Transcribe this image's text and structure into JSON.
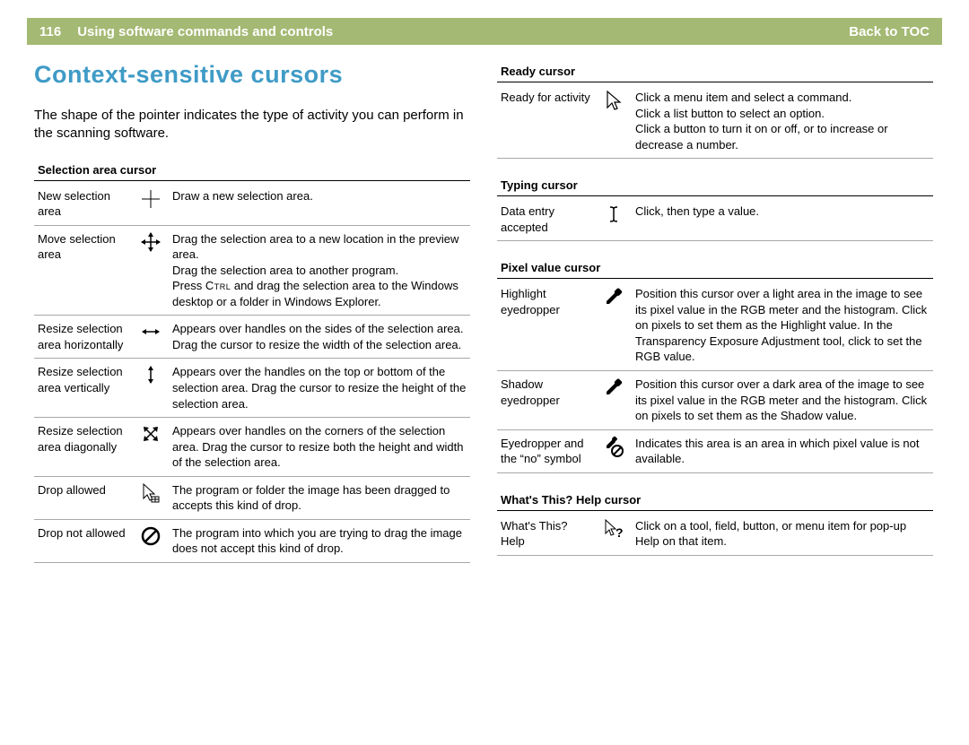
{
  "colors": {
    "header_bg": "#a4b973",
    "title": "#3f9bc6",
    "text": "#000000",
    "rule": "#a8a8a8"
  },
  "header": {
    "page_number": "116",
    "chapter_title": "Using software commands and controls",
    "back_link": "Back to TOC"
  },
  "title": "Context-sensitive cursors",
  "intro": "The shape of the pointer indicates the type of activity you can perform in the scanning software.",
  "left_sections": [
    {
      "heading": "Selection area cursor",
      "rows": [
        {
          "name": "New selection area",
          "icon": "crosshair-icon",
          "desc": "Draw a new selection area."
        },
        {
          "name": "Move selection area",
          "icon": "move-icon",
          "desc": "Drag the selection area to a new location in the preview area.\nDrag the selection area to another program.\nPress {CTRL} and drag the selection area to the Windows desktop or a folder in Windows Explorer."
        },
        {
          "name": "Resize selection area horizontally",
          "icon": "resize-h-icon",
          "desc": "Appears over handles on the sides of the selection area. Drag the cursor to resize the width of the selection area."
        },
        {
          "name": "Resize selection area vertically",
          "icon": "resize-v-icon",
          "desc": "Appears over the handles on the top or bottom of the selection area. Drag the cursor to resize the height of the selection area."
        },
        {
          "name": "Resize selection area diagonally",
          "icon": "resize-diag-icon",
          "desc": "Appears over handles on the corners of the selection area. Drag the cursor to resize both the height and width of the selection area."
        },
        {
          "name": "Drop allowed",
          "icon": "drop-allowed-icon",
          "desc": "The program or folder the image has been dragged to accepts this kind of drop."
        },
        {
          "name": "Drop not allowed",
          "icon": "no-entry-icon",
          "desc": "The program into which you are trying to drag the image does not accept this kind of drop."
        }
      ]
    }
  ],
  "right_sections": [
    {
      "heading": "Ready cursor",
      "rows": [
        {
          "name": "Ready for activity",
          "icon": "pointer-icon",
          "desc": "Click a menu item and select a command.\nClick a list button to select an option.\nClick a button to turn it on or off, or to increase or decrease a number."
        }
      ]
    },
    {
      "heading": "Typing cursor",
      "rows": [
        {
          "name": "Data entry accepted",
          "icon": "ibeam-icon",
          "desc": "Click, then type a value."
        }
      ]
    },
    {
      "heading": "Pixel value cursor",
      "rows": [
        {
          "name": "Highlight eyedropper",
          "icon": "eyedropper-black-icon",
          "desc": "Position this cursor over a light area in the image to see its pixel value in the RGB meter and the histogram. Click on pixels to set them as the Highlight value. In the Transparency Exposure Adjustment tool, click to set the RGB value."
        },
        {
          "name": "Shadow eyedropper",
          "icon": "eyedropper-black-icon",
          "desc": "Position this cursor over a dark area of the image to see its pixel value in the RGB meter and the histogram. Click on pixels to set them as the Shadow value."
        },
        {
          "name": "Eyedropper and the “no” symbol",
          "icon": "eyedropper-no-icon",
          "desc": "Indicates this area is an area in which pixel value is not available."
        }
      ]
    },
    {
      "heading": "What's This? Help cursor",
      "rows": [
        {
          "name": "What's This? Help",
          "icon": "help-pointer-icon",
          "desc": "Click on a tool, field, button, or menu item for pop-up Help on that item."
        }
      ]
    }
  ],
  "ctrl_label": "Ctrl"
}
